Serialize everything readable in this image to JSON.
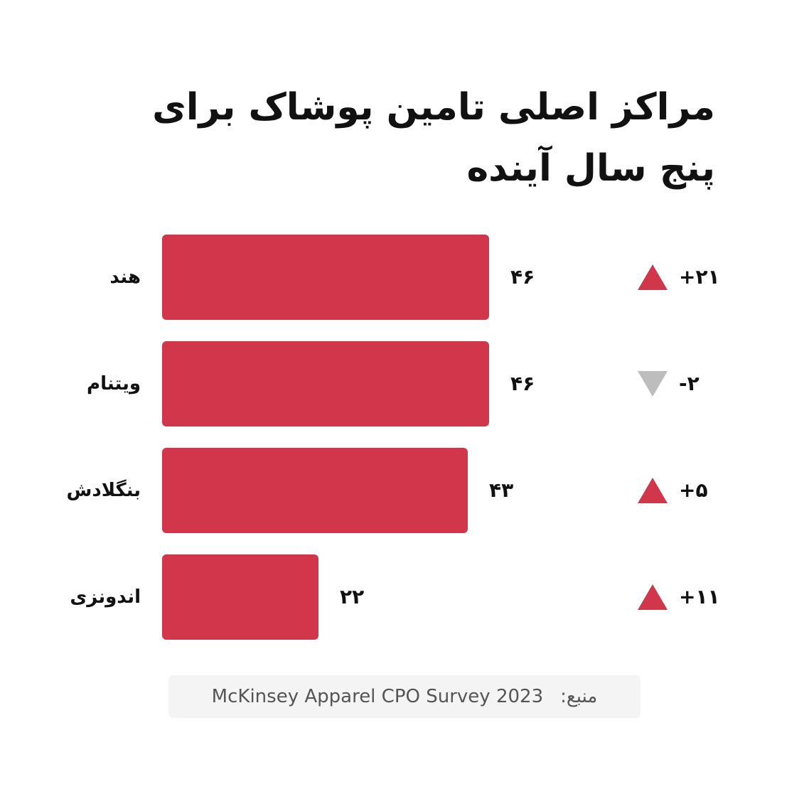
{
  "chart_data": {
    "type": "bar",
    "orientation": "horizontal",
    "title": "مراکز اصلی تامین پوشاک برای پنج سال آینده",
    "categories": [
      "هند",
      "ویتنام",
      "بنگلادش",
      "اندونزی"
    ],
    "values": [
      46,
      46,
      43,
      22
    ],
    "value_labels": [
      "۴۶",
      "۴۶",
      "۴۳",
      "۲۲"
    ],
    "changes": [
      {
        "label": "+۲۱",
        "direction": "up"
      },
      {
        "label": "-۲",
        "direction": "down"
      },
      {
        "label": "+۵",
        "direction": "up"
      },
      {
        "label": "+۱۱",
        "direction": "up"
      }
    ],
    "xlim": [
      0,
      46
    ],
    "grid": false,
    "colors": {
      "bar": "#d1364a",
      "up": "#d1364a",
      "down": "#bdbdbd"
    }
  },
  "source": {
    "label": "منبع:",
    "text": "McKinsey Apparel CPO Survey 2023"
  }
}
